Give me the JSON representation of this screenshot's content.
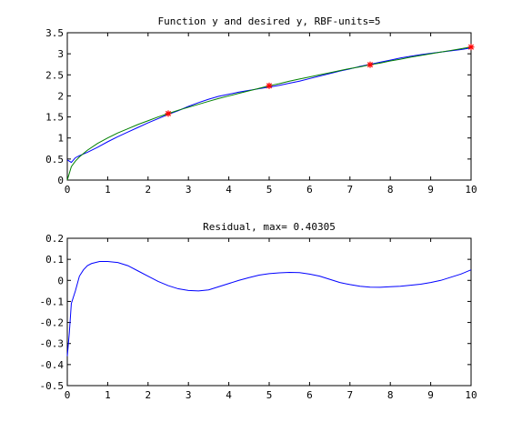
{
  "colors": {
    "blue_series": "#0000ff",
    "green_series": "#008000",
    "marker": "#ff0000",
    "axes": "#000000",
    "background": "#ffffff"
  },
  "chart_data": [
    {
      "type": "line",
      "title": "Function y and desired y, RBF-units=5",
      "xlabel": "",
      "ylabel": "",
      "xlim": [
        0,
        10
      ],
      "ylim": [
        0,
        3.5
      ],
      "xticks": [
        "0",
        "1",
        "2",
        "3",
        "4",
        "5",
        "6",
        "7",
        "8",
        "9",
        "10"
      ],
      "yticks": [
        "0",
        "0.5",
        "1",
        "1.5",
        "2",
        "2.5",
        "3",
        "3.5"
      ],
      "grid": false,
      "legend": "none",
      "series": [
        {
          "color": "blue",
          "x": [
            0,
            0.1,
            0.2,
            0.3,
            0.5,
            0.75,
            1.0,
            1.25,
            1.5,
            1.75,
            2.0,
            2.25,
            2.5,
            2.75,
            3.0,
            3.25,
            3.5,
            3.75,
            4.0,
            4.25,
            4.5,
            4.75,
            5.0,
            5.25,
            5.5,
            5.75,
            6.0,
            6.25,
            6.5,
            6.75,
            7.0,
            7.25,
            7.5,
            7.75,
            8.0,
            8.25,
            8.5,
            8.75,
            9.0,
            9.25,
            9.5,
            9.75,
            10.0
          ],
          "y": [
            0.48,
            0.42,
            0.53,
            0.58,
            0.66,
            0.78,
            0.91,
            1.03,
            1.14,
            1.25,
            1.36,
            1.46,
            1.56,
            1.65,
            1.75,
            1.84,
            1.92,
            1.99,
            2.04,
            2.09,
            2.13,
            2.17,
            2.21,
            2.25,
            2.3,
            2.35,
            2.41,
            2.47,
            2.53,
            2.59,
            2.64,
            2.7,
            2.75,
            2.8,
            2.85,
            2.9,
            2.94,
            2.98,
            3.01,
            3.04,
            3.07,
            3.1,
            3.14
          ]
        },
        {
          "color": "green",
          "x": [
            0,
            0.1,
            0.2,
            0.3,
            0.5,
            0.75,
            1.0,
            1.25,
            1.5,
            1.75,
            2.0,
            2.25,
            2.5,
            2.75,
            3.0,
            3.25,
            3.5,
            3.75,
            4.0,
            4.25,
            4.5,
            4.75,
            5.0,
            5.25,
            5.5,
            5.75,
            6.0,
            6.25,
            6.5,
            6.75,
            7.0,
            7.25,
            7.5,
            7.75,
            8.0,
            8.25,
            8.5,
            8.75,
            9.0,
            9.25,
            9.5,
            9.75,
            10.0
          ],
          "y": [
            0.0,
            0.32,
            0.45,
            0.55,
            0.71,
            0.87,
            1.0,
            1.12,
            1.22,
            1.32,
            1.41,
            1.5,
            1.58,
            1.66,
            1.73,
            1.8,
            1.87,
            1.94,
            2.0,
            2.06,
            2.12,
            2.18,
            2.24,
            2.29,
            2.35,
            2.4,
            2.45,
            2.5,
            2.55,
            2.6,
            2.65,
            2.69,
            2.74,
            2.78,
            2.83,
            2.87,
            2.92,
            2.96,
            3.0,
            3.04,
            3.08,
            3.12,
            3.16
          ]
        },
        {
          "color": "red",
          "marker": "*",
          "x": [
            2.5,
            5.0,
            7.5,
            10.0
          ],
          "y": [
            1.58,
            2.24,
            2.74,
            3.16
          ]
        }
      ]
    },
    {
      "type": "line",
      "title": "Residual, max= 0.40305",
      "xlabel": "",
      "ylabel": "",
      "xlim": [
        0,
        10
      ],
      "ylim": [
        -0.5,
        0.2
      ],
      "xticks": [
        "0",
        "1",
        "2",
        "3",
        "4",
        "5",
        "6",
        "7",
        "8",
        "9",
        "10"
      ],
      "yticks": [
        "-0.5",
        "-0.4",
        "-0.3",
        "-0.2",
        "-0.1",
        "0",
        "0.1",
        "0.2"
      ],
      "grid": false,
      "legend": "none",
      "series": [
        {
          "color": "blue",
          "x": [
            0,
            0.05,
            0.1,
            0.2,
            0.3,
            0.4,
            0.5,
            0.6,
            0.8,
            1.0,
            1.25,
            1.5,
            1.75,
            2.0,
            2.25,
            2.5,
            2.75,
            3.0,
            3.25,
            3.5,
            3.75,
            4.0,
            4.25,
            4.5,
            4.75,
            5.0,
            5.25,
            5.5,
            5.75,
            6.0,
            6.25,
            6.5,
            6.75,
            7.0,
            7.25,
            7.5,
            7.75,
            8.0,
            8.25,
            8.5,
            8.75,
            9.0,
            9.25,
            9.5,
            9.75,
            10.0
          ],
          "y": [
            -0.36,
            -0.25,
            -0.11,
            -0.05,
            0.02,
            0.05,
            0.07,
            0.08,
            0.09,
            0.09,
            0.085,
            0.07,
            0.045,
            0.02,
            -0.005,
            -0.025,
            -0.04,
            -0.048,
            -0.05,
            -0.045,
            -0.03,
            -0.015,
            0.0,
            0.013,
            0.025,
            0.032,
            0.036,
            0.038,
            0.037,
            0.03,
            0.02,
            0.005,
            -0.01,
            -0.02,
            -0.028,
            -0.032,
            -0.033,
            -0.03,
            -0.028,
            -0.023,
            -0.018,
            -0.01,
            0.0,
            0.015,
            0.03,
            0.05
          ]
        }
      ]
    }
  ]
}
